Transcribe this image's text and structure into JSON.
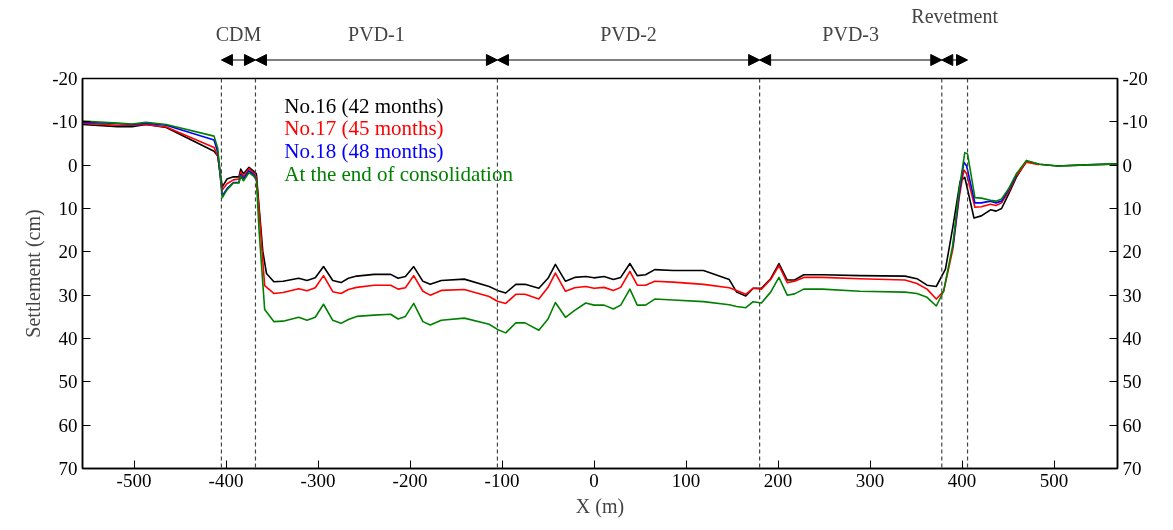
{
  "chart_data": {
    "type": "line",
    "xlabel": "X (m)",
    "ylabel": "Settlement (cm)",
    "xlim": [
      -556,
      569
    ],
    "xticks": [
      -500,
      -400,
      -300,
      -200,
      -100,
      0,
      100,
      200,
      300,
      400,
      500
    ],
    "ylim": [
      70,
      -20
    ],
    "yticks": [
      -20,
      -10,
      0,
      10,
      20,
      30,
      40,
      50,
      60,
      70
    ],
    "y2lim": [
      70,
      -20
    ],
    "y2ticks": [
      -20,
      -10,
      0,
      10,
      20,
      30,
      40,
      50,
      60,
      70
    ],
    "grid": false,
    "legend": "top left",
    "line_style": "solid",
    "marker": "none",
    "series": [
      {
        "name": "No.16 (42 months)",
        "color": "#000000",
        "x": [
          -556,
          -518,
          -502,
          -487,
          -465,
          -413,
          -409,
          -404,
          -399,
          -392,
          -386,
          -384,
          -381,
          -375,
          -370,
          -367,
          -364,
          -360,
          -356,
          -348,
          -338,
          -321,
          -312,
          -303,
          -294,
          -284,
          -275,
          -267,
          -258,
          -239,
          -221,
          -213,
          -205,
          -196,
          -186,
          -178,
          -166,
          -141,
          -114,
          -105,
          -96,
          -85,
          -75,
          -60,
          -50,
          -42,
          -31,
          -21,
          -9,
          0,
          11,
          21,
          29,
          39,
          47,
          56,
          66,
          86,
          119,
          147,
          155,
          165,
          173,
          182,
          192,
          201,
          210,
          218,
          228,
          248,
          289,
          338,
          351,
          362,
          372,
          382,
          390,
          398,
          403,
          413,
          421,
          431,
          437,
          443,
          451,
          459,
          470,
          484,
          504,
          528,
          569
        ],
        "values": [
          -9.4,
          -8.9,
          -8.9,
          -9.4,
          -8.7,
          -3.2,
          -2.1,
          5.0,
          3.2,
          2.7,
          2.7,
          0.9,
          2.0,
          0.5,
          1.4,
          2.0,
          9.8,
          19.9,
          25.0,
          26.9,
          26.8,
          26.1,
          26.6,
          26.0,
          23.4,
          26.6,
          27.1,
          26.1,
          25.6,
          25.2,
          25.2,
          26.1,
          25.7,
          23.4,
          26.8,
          27.5,
          26.6,
          26.3,
          28.0,
          28.9,
          29.5,
          27.5,
          27.5,
          28.4,
          26.1,
          22.9,
          26.8,
          25.9,
          25.7,
          26.0,
          25.7,
          26.4,
          25.9,
          22.7,
          25.5,
          25.3,
          24.1,
          24.3,
          24.3,
          26.4,
          29.3,
          30.2,
          28.4,
          28.4,
          26.2,
          22.7,
          26.5,
          26.5,
          25.3,
          25.3,
          25.5,
          25.6,
          26.2,
          27.7,
          28.0,
          24.0,
          14.3,
          3.7,
          2.8,
          12.2,
          11.7,
          10.3,
          10.6,
          10.0,
          6.5,
          2.8,
          -0.9,
          -0.2,
          0.2,
          0.0,
          -0.3
        ]
      },
      {
        "name": "No.17 (45 months)",
        "color": "#ff0000",
        "x": [
          -556,
          -518,
          -502,
          -487,
          -465,
          -413,
          -409,
          -404,
          -399,
          -392,
          -386,
          -384,
          -381,
          -375,
          -370,
          -367,
          -364,
          -358,
          -348,
          -338,
          -321,
          -312,
          -303,
          -294,
          -284,
          -275,
          -267,
          -258,
          -239,
          -221,
          -213,
          -205,
          -196,
          -186,
          -178,
          -166,
          -141,
          -114,
          -105,
          -96,
          -85,
          -75,
          -60,
          -50,
          -42,
          -31,
          -21,
          -9,
          0,
          11,
          21,
          29,
          39,
          47,
          56,
          66,
          86,
          119,
          147,
          155,
          165,
          173,
          182,
          192,
          201,
          210,
          218,
          228,
          248,
          289,
          338,
          351,
          362,
          372,
          380,
          390,
          397,
          402,
          405,
          414,
          421,
          431,
          437,
          443,
          451,
          459,
          470,
          484
        ],
        "values": [
          -9.7,
          -9.2,
          -9.2,
          -9.4,
          -8.8,
          -4.1,
          -2.1,
          5.7,
          4.3,
          3.4,
          3.2,
          1.6,
          2.7,
          0.8,
          1.8,
          2.7,
          10.7,
          27.8,
          29.6,
          29.4,
          28.5,
          29.0,
          28.3,
          25.5,
          29.2,
          29.6,
          28.7,
          28.2,
          27.7,
          27.7,
          28.6,
          28.3,
          25.5,
          29.1,
          30.0,
          28.9,
          28.7,
          30.3,
          31.4,
          31.9,
          29.8,
          29.8,
          30.9,
          28.2,
          24.9,
          29.1,
          28.3,
          28.0,
          28.4,
          28.2,
          28.9,
          28.2,
          24.5,
          27.7,
          27.7,
          26.8,
          27.0,
          27.5,
          28.3,
          28.9,
          29.8,
          28.4,
          28.6,
          26.4,
          23.2,
          27.1,
          26.8,
          25.9,
          25.9,
          26.2,
          26.5,
          27.3,
          28.6,
          30.9,
          29.1,
          19.4,
          7.4,
          1.1,
          2.0,
          9.7,
          9.6,
          9.0,
          9.3,
          8.7,
          6.0,
          2.5,
          -0.7,
          -0.1
        ]
      },
      {
        "name": "No.18 (48 months)",
        "color": "#0000ff",
        "x": [
          -556,
          -518,
          -502,
          -487,
          -465,
          -413,
          -409,
          -404,
          -399,
          -392,
          -386,
          -384,
          -381,
          -375,
          -370,
          -367,
          -364,
          -358,
          -348,
          -338,
          -321,
          -312,
          -303,
          -294,
          -284,
          -275,
          -267,
          -258,
          -239,
          -221,
          -213,
          -205,
          -196,
          -186,
          -178,
          -166,
          -141,
          -114,
          -105,
          -96,
          -85,
          -75,
          -60,
          -50,
          -42,
          -31,
          -21,
          -9,
          0,
          11,
          21,
          29,
          39,
          47,
          56,
          66,
          86,
          119,
          147,
          155,
          165,
          173,
          182,
          192,
          201,
          210,
          218,
          228,
          248,
          289,
          338,
          351,
          362,
          372,
          380,
          390,
          397,
          402,
          405,
          414,
          421,
          431,
          437,
          443,
          451,
          459
        ],
        "values": [
          -9.9,
          -9.6,
          -9.4,
          -9.7,
          -9.2,
          -5.8,
          -3.0,
          7.1,
          5.4,
          4.0,
          4.0,
          2.2,
          3.2,
          1.3,
          2.2,
          3.2,
          null,
          null,
          null,
          null,
          null,
          null,
          null,
          null,
          null,
          null,
          null,
          null,
          null,
          null,
          null,
          null,
          null,
          null,
          null,
          null,
          null,
          null,
          null,
          null,
          null,
          null,
          null,
          null,
          null,
          null,
          null,
          null,
          null,
          null,
          null,
          null,
          null,
          null,
          null,
          null,
          null,
          null,
          null,
          null,
          null,
          null,
          null,
          null,
          null,
          null,
          null,
          null,
          null,
          null,
          null,
          null,
          null,
          null,
          null,
          19.0,
          6.5,
          -0.7,
          0.2,
          8.7,
          8.7,
          8.3,
          8.7,
          8.3,
          5.5,
          2.3
        ]
      },
      {
        "name": "At the end of consolidation",
        "color": "#008000",
        "x": [
          -556,
          -518,
          -502,
          -487,
          -465,
          -413,
          -409,
          -404,
          -399,
          -392,
          -386,
          -384,
          -381,
          -375,
          -370,
          -367,
          -364,
          -358,
          -348,
          -338,
          -321,
          -312,
          -303,
          -294,
          -284,
          -275,
          -267,
          -258,
          -239,
          -221,
          -213,
          -205,
          -196,
          -186,
          -178,
          -166,
          -141,
          -114,
          -105,
          -96,
          -85,
          -75,
          -60,
          -50,
          -42,
          -31,
          -21,
          -9,
          0,
          11,
          21,
          29,
          39,
          47,
          56,
          66,
          86,
          119,
          147,
          155,
          165,
          173,
          182,
          192,
          201,
          210,
          218,
          228,
          248,
          289,
          338,
          351,
          362,
          372,
          380,
          390,
          397,
          403,
          406,
          414,
          421,
          431,
          437,
          443,
          451,
          459,
          470,
          484,
          504,
          528,
          569
        ],
        "values": [
          -10.2,
          -9.7,
          -9.5,
          -9.9,
          -9.4,
          -6.7,
          -3.9,
          7.5,
          5.7,
          4.1,
          4.1,
          2.5,
          3.6,
          1.7,
          2.5,
          3.4,
          15.3,
          33.3,
          36.1,
          36.0,
          35.1,
          35.8,
          35.1,
          32.1,
          35.8,
          36.5,
          35.6,
          34.9,
          34.6,
          34.4,
          35.5,
          34.9,
          31.9,
          36.1,
          36.9,
          35.8,
          35.3,
          36.7,
          37.9,
          38.7,
          36.4,
          36.4,
          38.1,
          35.5,
          31.7,
          35.1,
          33.5,
          31.8,
          32.3,
          32.3,
          33.2,
          32.3,
          28.6,
          32.3,
          32.3,
          30.9,
          31.1,
          31.5,
          32.2,
          32.6,
          32.9,
          31.5,
          31.8,
          29.3,
          25.9,
          30.0,
          29.7,
          28.6,
          28.6,
          29.1,
          29.3,
          29.6,
          30.5,
          32.5,
          29.1,
          18.4,
          5.5,
          -2.9,
          -2.6,
          7.5,
          7.6,
          8.1,
          8.3,
          7.8,
          5.3,
          2.0,
          -1.1,
          -0.2,
          0.2,
          0.0,
          -0.3
        ]
      }
    ],
    "ref_lines": [
      {
        "axis": "x",
        "value": -405,
        "color": "#444444",
        "line_style": "dashed"
      },
      {
        "axis": "x",
        "value": -368,
        "color": "#444444",
        "line_style": "dashed"
      },
      {
        "axis": "x",
        "value": -105,
        "color": "#444444",
        "line_style": "dashed"
      },
      {
        "axis": "x",
        "value": 180,
        "color": "#444444",
        "line_style": "dashed"
      },
      {
        "axis": "x",
        "value": 378,
        "color": "#444444",
        "line_style": "dashed"
      },
      {
        "axis": "x",
        "value": 406,
        "color": "#444444",
        "line_style": "dashed"
      }
    ],
    "annotations": [
      "CDM",
      "PVD-1",
      "PVD-2",
      "PVD-3",
      "Revetment"
    ]
  }
}
